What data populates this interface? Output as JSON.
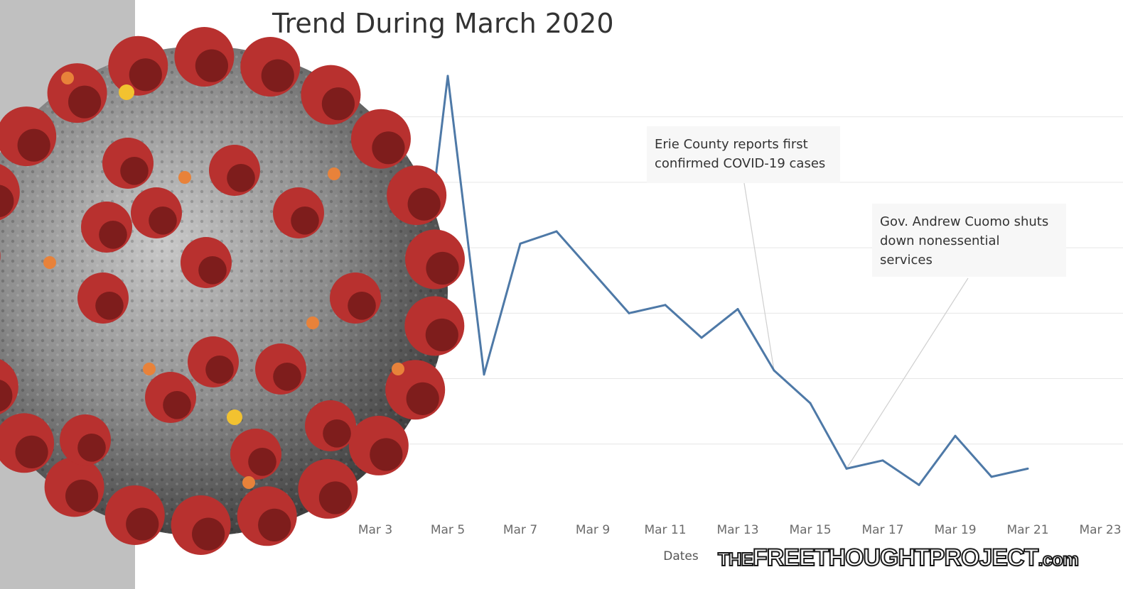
{
  "chart_data": {
    "type": "line",
    "title": "Trend During March 2020",
    "xlabel": "Dates",
    "ylabel": "",
    "tick_labels": [
      "Mar 3",
      "Mar 5",
      "Mar 7",
      "Mar 9",
      "Mar 11",
      "Mar 13",
      "Mar 15",
      "Mar 17",
      "Mar 19",
      "Mar 21",
      "Mar 23"
    ],
    "x": [
      4,
      5,
      6,
      7,
      8,
      9,
      10,
      11,
      12,
      13,
      14,
      15,
      16,
      17,
      18,
      19,
      20,
      21,
      22
    ],
    "values": [
      32,
      106,
      33,
      65,
      68,
      58,
      48,
      50,
      42,
      49,
      34,
      26,
      10,
      12,
      6,
      18,
      8,
      10,
      null
    ],
    "xlim": [
      2.4,
      23
    ],
    "ylim": [
      0,
      110
    ],
    "grid": "horizontal",
    "colors": {
      "line": "#4e79a7",
      "grid": "#e6e6e6"
    },
    "annotations": [
      {
        "lines": [
          "Erie County reports first",
          "confirmed COVID-19 cases"
        ],
        "x": 14
      },
      {
        "lines": [
          "Gov. Andrew Cuomo shuts",
          "down nonessential",
          "services"
        ],
        "x": 16
      }
    ]
  },
  "overlay": {
    "image": "coronavirus-illustration",
    "colors": {
      "body": "#9a9a9a",
      "spike": "#b8312f",
      "spike_dark": "#7e1d1c",
      "orange": "#e8823a",
      "yellow": "#f2c230"
    }
  },
  "watermark": {
    "the": "THE",
    "main": "FREETHOUGHTPROJECT",
    "com": ".com"
  }
}
